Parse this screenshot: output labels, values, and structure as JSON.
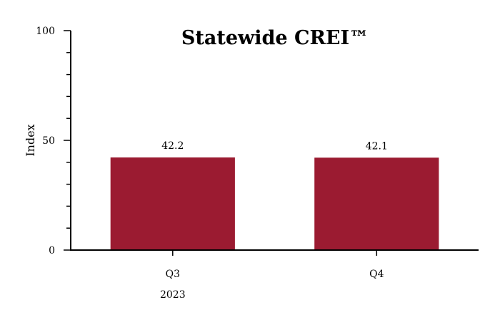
{
  "chart_data": {
    "type": "bar",
    "title": "Statewide CREI™",
    "xlabel": "",
    "ylabel": "Index",
    "ylim": [
      0,
      100
    ],
    "yticks": [
      0,
      50,
      100
    ],
    "y_minor_step": 10,
    "categories": [
      "Q3",
      "Q4"
    ],
    "category_group": {
      "label": "2023",
      "under": "Q3"
    },
    "values": [
      42.2,
      42.1
    ],
    "data_labels": [
      "42.2",
      "42.1"
    ],
    "bar_color": "#9b1b31",
    "grid": false,
    "legend": "none"
  }
}
